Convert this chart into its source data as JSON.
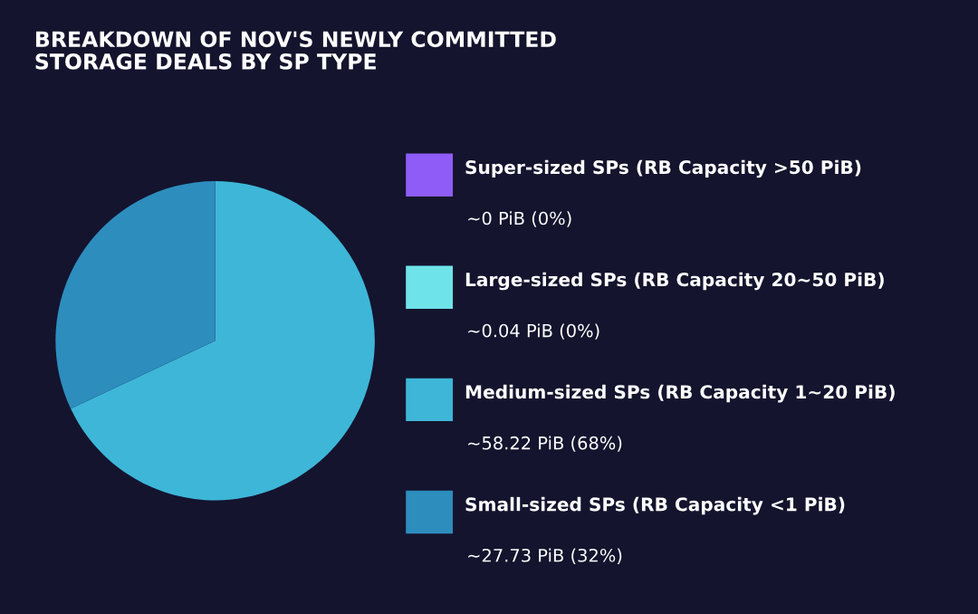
{
  "chart_data": {
    "type": "pie",
    "title": "BREAKDOWN OF NOV'S NEWLY COMMITTED\nSTORAGE DEALS BY SP TYPE",
    "categories": [
      "Super-sized SPs (RB Capacity >50 PiB)",
      "Large-sized SPs (RB Capacity 20~50 PiB)",
      "Medium-sized SPs (RB Capacity 1~20 PiB)",
      "Small-sized SPs (RB Capacity <1 PiB)"
    ],
    "values": [
      0,
      0,
      68,
      32
    ],
    "annotations": [
      "~0 PiB (0%)",
      "~0.04 PiB (0%)",
      "~58.22 PiB (68%)",
      "~27.73 PiB (32%)"
    ],
    "colors": [
      "#8f5cf7",
      "#6fe3ea",
      "#3eb6d8",
      "#2d8dbd"
    ],
    "legend": "right"
  }
}
